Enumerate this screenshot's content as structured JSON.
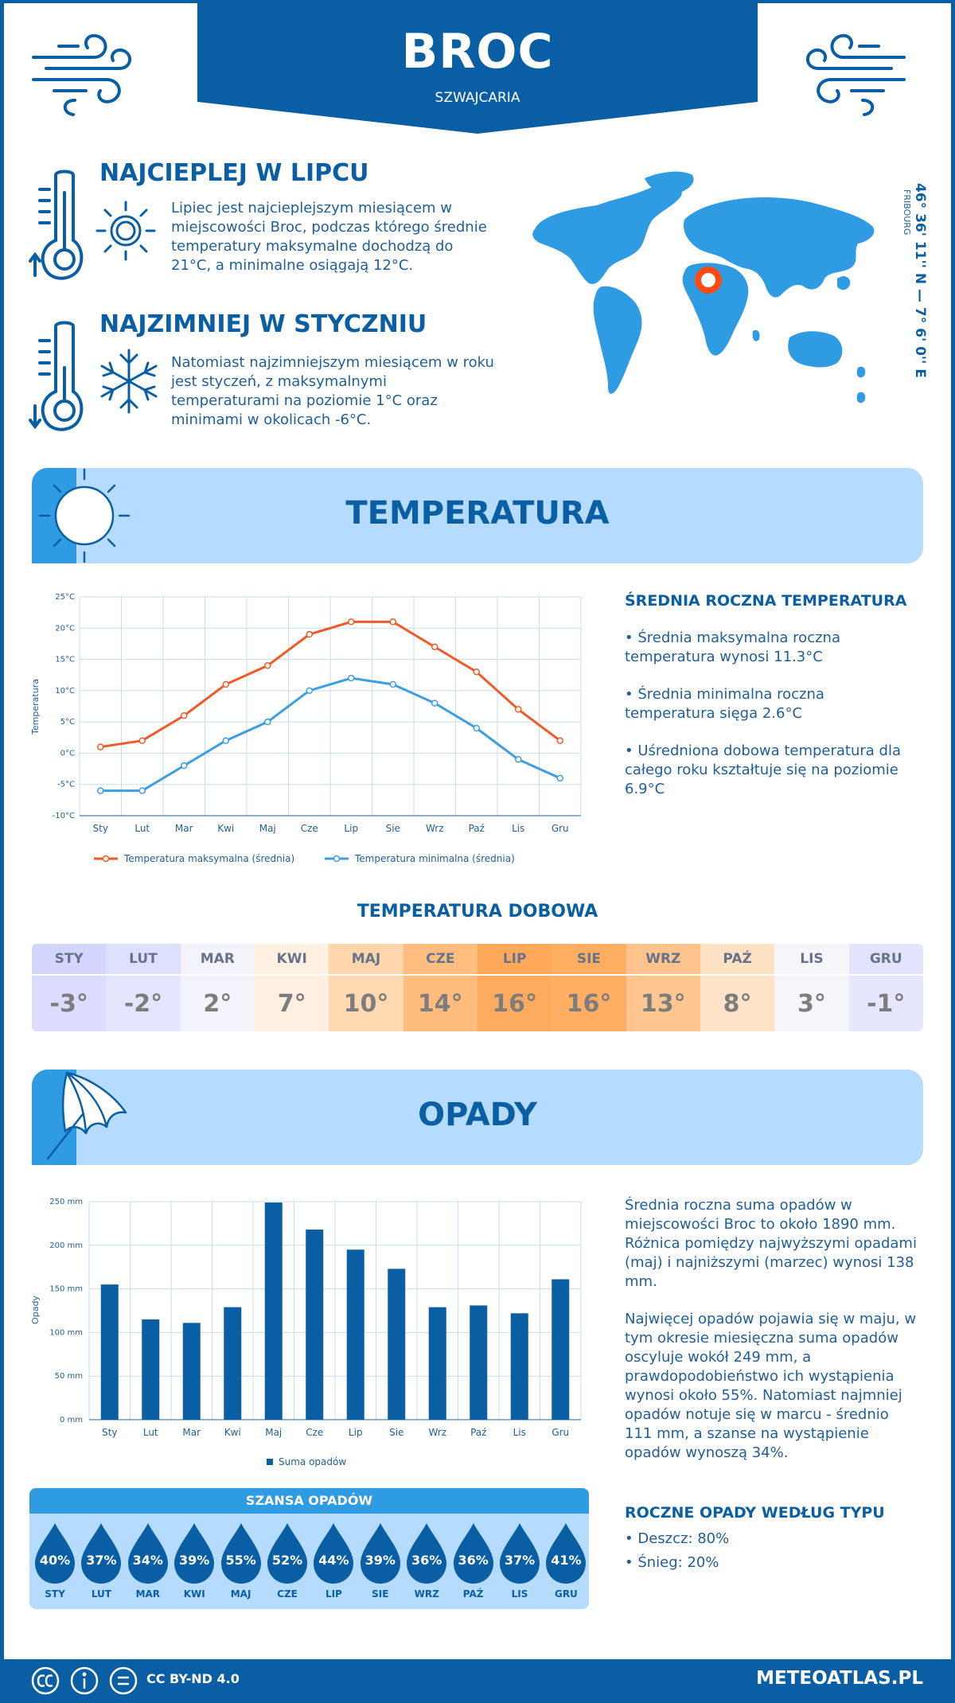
{
  "header": {
    "city": "BROC",
    "country": "SZWAJCARIA"
  },
  "facts": {
    "warmest": {
      "title": "NAJCIEPLEJ W LIPCU",
      "text": "Lipiec jest najcieplejszym miesiącem w miejscowości Broc, podczas którego średnie temperatury maksymalne dochodzą do 21°C, a minimalne osiągają 12°C."
    },
    "coldest": {
      "title": "NAJZIMNIEJ W STYCZNIU",
      "text": "Natomiast najzimniejszym miesiącem w roku jest styczeń, z maksymalnymi temperaturami na poziomie 1°C oraz minimami w okolicach -6°C."
    }
  },
  "location": {
    "coords": "46° 36' 11'' N — 7° 6' 0'' E",
    "region": "FRIBOURG"
  },
  "temperature_section": {
    "title": "TEMPERATURA",
    "side_title": "ŚREDNIA ROCZNA TEMPERATURA",
    "bullets": [
      "• Średnia maksymalna roczna temperatura wynosi 11.3°C",
      "• Średnia minimalna roczna temperatura sięga 2.6°C",
      "• Uśredniona dobowa temperatura dla całego roku kształtuje się na poziomie 6.9°C"
    ]
  },
  "daily": {
    "title": "TEMPERATURA DOBOWA",
    "months": [
      "STY",
      "LUT",
      "MAR",
      "KWI",
      "MAJ",
      "CZE",
      "LIP",
      "SIE",
      "WRZ",
      "PAŹ",
      "LIS",
      "GRU"
    ],
    "temps": [
      "-3°",
      "-2°",
      "2°",
      "7°",
      "10°",
      "14°",
      "16°",
      "16°",
      "13°",
      "8°",
      "3°",
      "-1°"
    ],
    "header_colors": [
      "#d3d6ff",
      "#dde0ff",
      "#f3f3fb",
      "#fff0e2",
      "#ffd6ac",
      "#ffbd80",
      "#ffa95a",
      "#ffad61",
      "#ffc48d",
      "#ffe1c4",
      "#f5f5fa",
      "#e3e5ff"
    ],
    "value_colors": [
      "#dbdcff",
      "#e4e5ff",
      "#f3f3fb",
      "#ffefe0",
      "#ffd9b2",
      "#ffbc7d",
      "#ffab5f",
      "#ffae63",
      "#ffc690",
      "#ffe3c8",
      "#f5f5fa",
      "#e6e7ff"
    ]
  },
  "precip_section": {
    "title": "OPADY",
    "text1": "Średnia roczna suma opadów w miejscowości Broc to około 1890 mm. Różnica pomiędzy najwyższymi opadami (maj) i najniższymi (marzec) wynosi 138 mm.",
    "text2": "Najwięcej opadów pojawia się w maju, w tym okresie miesięczna suma opadów oscyluje wokół 249 mm, a prawdopodobieństwo ich wystąpienia wynosi około 55%. Natomiast najmniej opadów notuje się w marcu - średnio 111 mm, a szanse na wystąpienie opadów wynoszą 34%.",
    "types_title": "ROCZNE OPADY WEDŁUG TYPU",
    "types": [
      "• Deszcz: 80%",
      "• Śnieg: 20%"
    ]
  },
  "chance": {
    "title": "SZANSA OPADÓW",
    "months": [
      "STY",
      "LUT",
      "MAR",
      "KWI",
      "MAJ",
      "CZE",
      "LIP",
      "SIE",
      "WRZ",
      "PAŹ",
      "LIS",
      "GRU"
    ],
    "values": [
      "40%",
      "37%",
      "34%",
      "39%",
      "55%",
      "52%",
      "44%",
      "39%",
      "36%",
      "36%",
      "37%",
      "41%"
    ]
  },
  "footer": {
    "license": "CC BY-ND 4.0",
    "site": "METEOATLAS.PL"
  },
  "colors": {
    "primary": "#0a5ea3",
    "banner": "#b5dcff",
    "max_line": "#f05a28",
    "min_line": "#3d9ee0",
    "bar": "#0a5ea3"
  },
  "chart_data": [
    {
      "type": "line",
      "categories": [
        "Sty",
        "Lut",
        "Mar",
        "Kwi",
        "Maj",
        "Cze",
        "Lip",
        "Sie",
        "Wrz",
        "Paź",
        "Lis",
        "Gru"
      ],
      "series": [
        {
          "name": "Temperatura maksymalna (średnia)",
          "values": [
            1,
            2,
            6,
            11,
            14,
            19,
            21,
            21,
            17,
            13,
            7,
            2
          ]
        },
        {
          "name": "Temperatura minimalna (średnia)",
          "values": [
            -6,
            -6,
            -2,
            2,
            5,
            10,
            12,
            11,
            8,
            4,
            -1,
            -4
          ]
        }
      ],
      "ylabel": "Temperatura",
      "ylim": [
        -10,
        25
      ],
      "yticks": [
        "-10°C",
        "-5°C",
        "0°C",
        "5°C",
        "10°C",
        "15°C",
        "20°C",
        "25°C"
      ],
      "grid": true,
      "legend": "bottom"
    },
    {
      "type": "bar",
      "categories": [
        "Sty",
        "Lut",
        "Mar",
        "Kwi",
        "Maj",
        "Cze",
        "Lip",
        "Sie",
        "Wrz",
        "Paź",
        "Lis",
        "Gru"
      ],
      "series": [
        {
          "name": "Suma opadów",
          "values": [
            155,
            115,
            111,
            129,
            249,
            218,
            195,
            173,
            129,
            131,
            122,
            161
          ]
        }
      ],
      "ylabel": "Opady",
      "ylim": [
        0,
        250
      ],
      "yticks": [
        "0 mm",
        "50 mm",
        "100 mm",
        "150 mm",
        "200 mm",
        "250 mm"
      ],
      "grid": true,
      "legend": "bottom"
    }
  ]
}
